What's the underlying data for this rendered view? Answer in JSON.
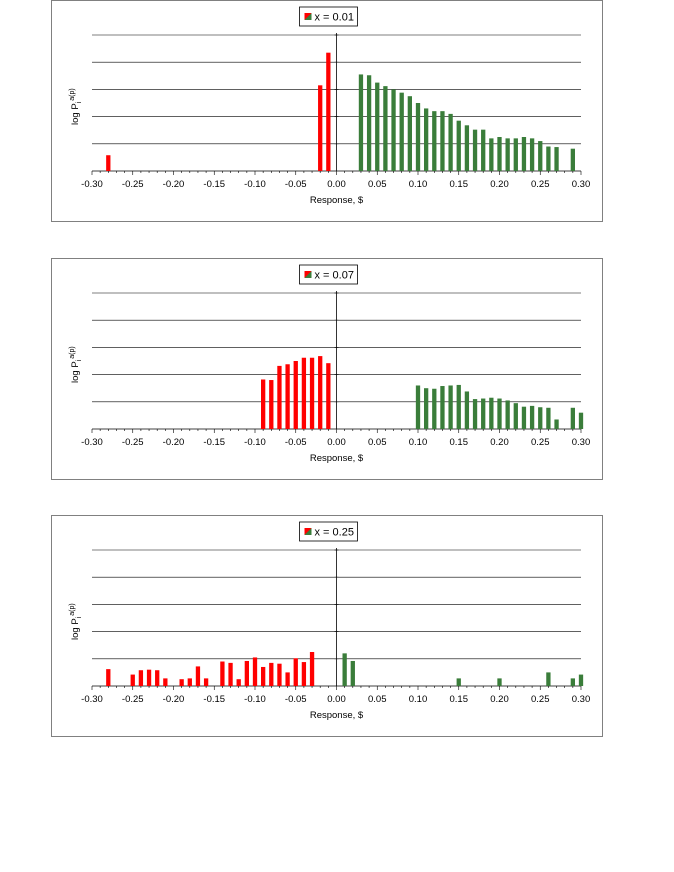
{
  "chart_data": [
    {
      "type": "bar",
      "legend": "x = 0.01",
      "xlabel": "Response, $",
      "ylabel": "log P",
      "ylabel_sub": "i",
      "ylabel_sup": "a(p)",
      "xlim": [
        -0.3,
        0.3
      ],
      "ylim": [
        0,
        5
      ],
      "grid": true,
      "legend_position": "top-center",
      "tick_labels": [
        "-0.30",
        "-0.25",
        "-0.20",
        "-0.15",
        "-0.10",
        "-0.05",
        "0.00",
        "0.05",
        "0.10",
        "0.15",
        "0.20",
        "0.25",
        "0.30"
      ],
      "colors": {
        "negative": "#ff0000",
        "positive": "#3a7d3a"
      },
      "series": [
        {
          "color": "#ff0000",
          "points": [
            [
              -0.28,
              0.58
            ],
            [
              -0.02,
              3.15
            ],
            [
              -0.01,
              4.35
            ]
          ]
        },
        {
          "color": "#3a7d3a",
          "points": [
            [
              0.03,
              3.55
            ],
            [
              0.04,
              3.52
            ],
            [
              0.05,
              3.25
            ],
            [
              0.06,
              3.12
            ],
            [
              0.07,
              3.0
            ],
            [
              0.08,
              2.88
            ],
            [
              0.09,
              2.75
            ],
            [
              0.1,
              2.5
            ],
            [
              0.11,
              2.3
            ],
            [
              0.12,
              2.2
            ],
            [
              0.13,
              2.2
            ],
            [
              0.14,
              2.1
            ],
            [
              0.15,
              1.85
            ],
            [
              0.16,
              1.68
            ],
            [
              0.17,
              1.52
            ],
            [
              0.18,
              1.52
            ],
            [
              0.19,
              1.2
            ],
            [
              0.2,
              1.25
            ],
            [
              0.21,
              1.2
            ],
            [
              0.22,
              1.2
            ],
            [
              0.23,
              1.25
            ],
            [
              0.24,
              1.2
            ],
            [
              0.25,
              1.1
            ],
            [
              0.26,
              0.9
            ],
            [
              0.27,
              0.88
            ],
            [
              0.29,
              0.82
            ]
          ]
        }
      ]
    },
    {
      "type": "bar",
      "legend": "x = 0.07",
      "xlabel": "Response, $",
      "ylabel": "log P",
      "ylabel_sub": "i",
      "ylabel_sup": "a(p)",
      "xlim": [
        -0.3,
        0.3
      ],
      "ylim": [
        0,
        5
      ],
      "grid": true,
      "legend_position": "top-center",
      "tick_labels": [
        "-0.30",
        "-0.25",
        "-0.20",
        "-0.15",
        "-0.10",
        "-0.05",
        "0.00",
        "0.05",
        "0.10",
        "0.15",
        "0.20",
        "0.25",
        "0.30"
      ],
      "colors": {
        "negative": "#ff0000",
        "positive": "#3a7d3a"
      },
      "series": [
        {
          "color": "#ff0000",
          "points": [
            [
              -0.09,
              1.82
            ],
            [
              -0.08,
              1.8
            ],
            [
              -0.07,
              2.32
            ],
            [
              -0.06,
              2.38
            ],
            [
              -0.05,
              2.5
            ],
            [
              -0.04,
              2.62
            ],
            [
              -0.03,
              2.62
            ],
            [
              -0.02,
              2.68
            ],
            [
              -0.01,
              2.42
            ]
          ]
        },
        {
          "color": "#3a7d3a",
          "points": [
            [
              0.1,
              1.6
            ],
            [
              0.11,
              1.5
            ],
            [
              0.12,
              1.48
            ],
            [
              0.13,
              1.58
            ],
            [
              0.14,
              1.6
            ],
            [
              0.15,
              1.62
            ],
            [
              0.16,
              1.38
            ],
            [
              0.17,
              1.1
            ],
            [
              0.18,
              1.12
            ],
            [
              0.19,
              1.15
            ],
            [
              0.2,
              1.12
            ],
            [
              0.21,
              1.05
            ],
            [
              0.22,
              0.95
            ],
            [
              0.23,
              0.82
            ],
            [
              0.24,
              0.85
            ],
            [
              0.25,
              0.8
            ],
            [
              0.26,
              0.78
            ],
            [
              0.27,
              0.35
            ],
            [
              0.29,
              0.78
            ],
            [
              0.3,
              0.6
            ]
          ]
        }
      ]
    },
    {
      "type": "bar",
      "legend": "x = 0.25",
      "xlabel": "Response, $",
      "ylabel": "log P",
      "ylabel_sub": "i",
      "ylabel_sup": "a(p)",
      "xlim": [
        -0.3,
        0.3
      ],
      "ylim": [
        0,
        5
      ],
      "grid": true,
      "legend_position": "top-center",
      "tick_labels": [
        "-0.30",
        "-0.25",
        "-0.20",
        "-0.15",
        "-0.10",
        "-0.05",
        "0.00",
        "0.05",
        "0.10",
        "0.15",
        "0.20",
        "0.25",
        "0.30"
      ],
      "colors": {
        "negative": "#ff0000",
        "positive": "#3a7d3a"
      },
      "series": [
        {
          "color": "#ff0000",
          "points": [
            [
              -0.28,
              0.62
            ],
            [
              -0.25,
              0.42
            ],
            [
              -0.24,
              0.58
            ],
            [
              -0.23,
              0.6
            ],
            [
              -0.22,
              0.58
            ],
            [
              -0.21,
              0.28
            ],
            [
              -0.19,
              0.25
            ],
            [
              -0.18,
              0.28
            ],
            [
              -0.17,
              0.72
            ],
            [
              -0.16,
              0.28
            ],
            [
              -0.14,
              0.9
            ],
            [
              -0.13,
              0.85
            ],
            [
              -0.12,
              0.25
            ],
            [
              -0.11,
              0.92
            ],
            [
              -0.1,
              1.05
            ],
            [
              -0.09,
              0.7
            ],
            [
              -0.08,
              0.85
            ],
            [
              -0.07,
              0.82
            ],
            [
              -0.06,
              0.5
            ],
            [
              -0.05,
              1.02
            ],
            [
              -0.04,
              0.88
            ],
            [
              -0.03,
              1.25
            ]
          ]
        },
        {
          "color": "#3a7d3a",
          "points": [
            [
              0.01,
              1.2
            ],
            [
              0.02,
              0.92
            ],
            [
              0.15,
              0.28
            ],
            [
              0.2,
              0.28
            ],
            [
              0.26,
              0.5
            ],
            [
              0.29,
              0.28
            ],
            [
              0.3,
              0.42
            ]
          ]
        }
      ]
    }
  ]
}
